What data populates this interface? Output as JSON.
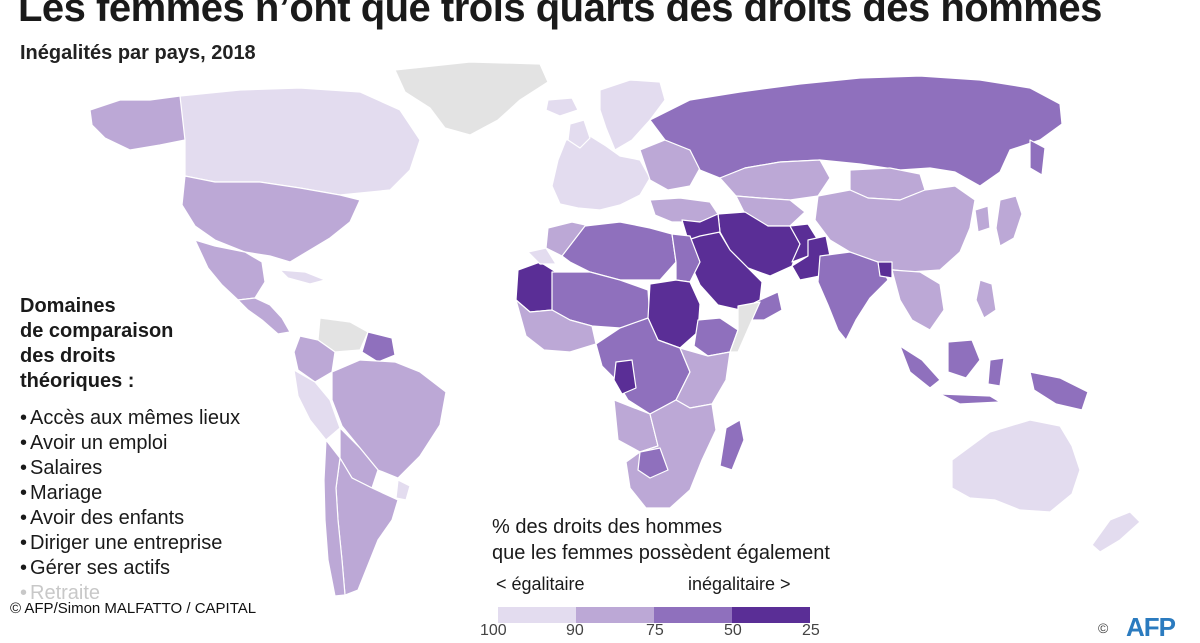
{
  "title": "Les femmes n’ont que trois quarts des droits des hommes",
  "subtitle": "Inégalités par pays, 2018",
  "domains": {
    "heading_lines": [
      "Domaines",
      "de comparaison",
      "des droits",
      "théoriques :"
    ],
    "items": [
      "Accès aux mêmes lieux",
      "Avoir un emploi",
      "Salaires",
      "Mariage",
      "Avoir des enfants",
      "Diriger une entreprise",
      "Gérer ses actifs",
      "Retraite"
    ]
  },
  "legend": {
    "title_lines": [
      "% des droits des hommes",
      "que les femmes possèdent également"
    ],
    "left_label": "< égalitaire",
    "right_label": "inégalitaire >",
    "ticks": [
      "100",
      "90",
      "75",
      "50",
      "25"
    ],
    "colors": [
      "#e3dcef",
      "#bca8d6",
      "#8f70bd",
      "#5a2e96"
    ]
  },
  "credit": "© AFP/Simon MALFATTO / CAPITAL",
  "logo_text": "AFP",
  "colors": {
    "nodata": "#e3e3e3",
    "c1": "#e3dcef",
    "c2": "#bca8d6",
    "c3": "#8f70bd",
    "c4": "#5a2e96",
    "border": "#ffffff"
  }
}
